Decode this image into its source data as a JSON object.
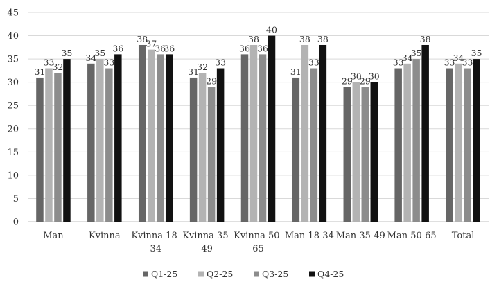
{
  "chart_data": {
    "type": "bar",
    "title": "",
    "xlabel": "",
    "ylabel": "",
    "ylim": [
      0,
      45
    ],
    "yticks": [
      "0",
      "5",
      "10",
      "15",
      "20",
      "25",
      "30",
      "35",
      "40",
      "45"
    ],
    "grid": true,
    "legend_position": "bottom",
    "categories": [
      [
        "Man"
      ],
      [
        "Kvinna"
      ],
      [
        "Kvinna 18-",
        "34"
      ],
      [
        "Kvinna 35-",
        "49"
      ],
      [
        "Kvinna 50-",
        "65"
      ],
      [
        "Man 18-34"
      ],
      [
        "Man 35-49"
      ],
      [
        "Man 50-65"
      ],
      [
        "Total"
      ]
    ],
    "series": [
      {
        "name": "Q1-25",
        "color": "#666666",
        "values": [
          31,
          34,
          38,
          31,
          36,
          31,
          29,
          33,
          33
        ]
      },
      {
        "name": "Q2-25",
        "color": "#b3b3b3",
        "values": [
          33,
          35,
          37,
          32,
          38,
          38,
          30,
          34,
          34
        ]
      },
      {
        "name": "Q3-25",
        "color": "#8c8c8c",
        "values": [
          32,
          33,
          36,
          29,
          36,
          33,
          29,
          35,
          33
        ]
      },
      {
        "name": "Q4-25",
        "color": "#111111",
        "values": [
          35,
          36,
          36,
          33,
          40,
          38,
          30,
          38,
          35
        ]
      }
    ]
  }
}
